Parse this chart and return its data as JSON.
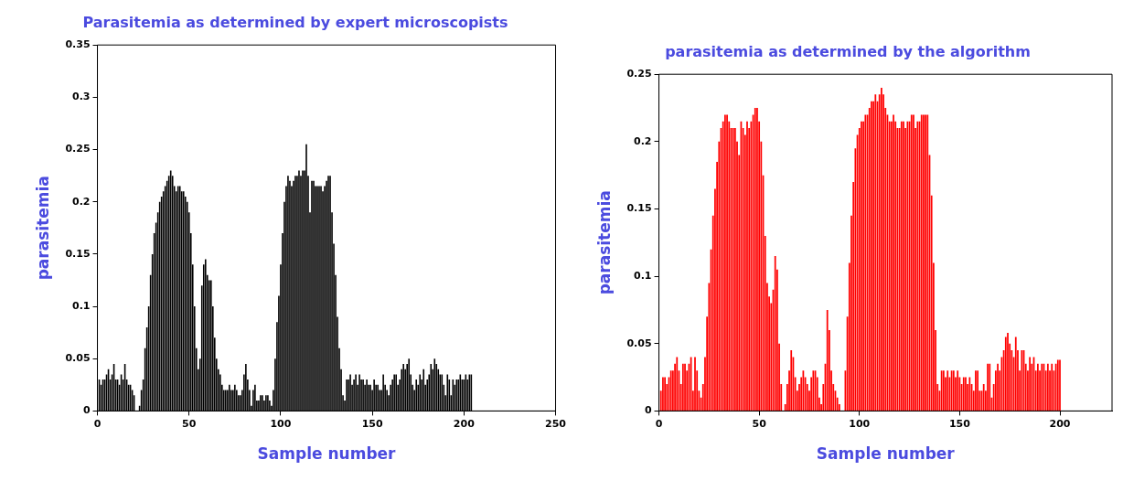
{
  "chart_data": [
    {
      "type": "bar",
      "title": "Parasitemia as determined by expert microscopists",
      "xlabel": "Sample number",
      "ylabel": "parasitemia",
      "color": "#000000",
      "x": [
        1,
        2,
        3,
        4,
        5,
        6,
        7,
        8,
        9,
        10,
        11,
        12,
        13,
        14,
        15,
        16,
        17,
        18,
        19,
        20,
        21,
        22,
        23,
        24,
        25,
        26,
        27,
        28,
        29,
        30,
        31,
        32,
        33,
        34,
        35,
        36,
        37,
        38,
        39,
        40,
        41,
        42,
        43,
        44,
        45,
        46,
        47,
        48,
        49,
        50,
        51,
        52,
        53,
        54,
        55,
        56,
        57,
        58,
        59,
        60,
        61,
        62,
        63,
        64,
        65,
        66,
        67,
        68,
        69,
        70,
        71,
        72,
        73,
        74,
        75,
        76,
        77,
        78,
        79,
        80,
        81,
        82,
        83,
        84,
        85,
        86,
        87,
        88,
        89,
        90,
        91,
        92,
        93,
        94,
        95,
        96,
        97,
        98,
        99,
        100,
        101,
        102,
        103,
        104,
        105,
        106,
        107,
        108,
        109,
        110,
        111,
        112,
        113,
        114,
        115,
        116,
        117,
        118,
        119,
        120,
        121,
        122,
        123,
        124,
        125,
        126,
        127,
        128,
        129,
        130,
        131,
        132,
        133,
        134,
        135,
        136,
        137,
        138,
        139,
        140,
        141,
        142,
        143,
        144,
        145,
        146,
        147,
        148,
        149,
        150,
        151,
        152,
        153,
        154,
        155,
        156,
        157,
        158,
        159,
        160,
        161,
        162,
        163,
        164,
        165,
        166,
        167,
        168,
        169,
        170,
        171,
        172,
        173,
        174,
        175,
        176,
        177,
        178,
        179,
        180,
        181,
        182,
        183,
        184,
        185,
        186,
        187,
        188,
        189,
        190,
        191,
        192,
        193,
        194,
        195,
        196,
        197,
        198,
        199,
        200,
        201,
        202,
        203,
        204
      ],
      "values": [
        0.03,
        0.025,
        0.03,
        0.03,
        0.035,
        0.04,
        0.03,
        0.035,
        0.045,
        0.03,
        0.03,
        0.025,
        0.035,
        0.03,
        0.045,
        0.03,
        0.025,
        0.025,
        0.02,
        0.015,
        0.0,
        0.0,
        0.005,
        0.02,
        0.03,
        0.06,
        0.08,
        0.1,
        0.13,
        0.15,
        0.17,
        0.18,
        0.19,
        0.2,
        0.205,
        0.21,
        0.215,
        0.22,
        0.225,
        0.23,
        0.225,
        0.215,
        0.21,
        0.215,
        0.215,
        0.21,
        0.21,
        0.205,
        0.2,
        0.19,
        0.17,
        0.14,
        0.1,
        0.06,
        0.04,
        0.05,
        0.12,
        0.14,
        0.145,
        0.13,
        0.125,
        0.125,
        0.1,
        0.07,
        0.05,
        0.04,
        0.035,
        0.025,
        0.02,
        0.02,
        0.02,
        0.025,
        0.02,
        0.02,
        0.025,
        0.02,
        0.015,
        0.015,
        0.02,
        0.035,
        0.045,
        0.03,
        0.02,
        0.005,
        0.02,
        0.025,
        0.01,
        0.01,
        0.015,
        0.015,
        0.01,
        0.015,
        0.015,
        0.01,
        0.005,
        0.02,
        0.05,
        0.085,
        0.11,
        0.14,
        0.17,
        0.2,
        0.215,
        0.225,
        0.22,
        0.215,
        0.22,
        0.225,
        0.225,
        0.23,
        0.225,
        0.23,
        0.23,
        0.255,
        0.225,
        0.19,
        0.22,
        0.22,
        0.215,
        0.215,
        0.215,
        0.215,
        0.21,
        0.215,
        0.22,
        0.225,
        0.225,
        0.19,
        0.16,
        0.13,
        0.09,
        0.06,
        0.04,
        0.015,
        0.01,
        0.03,
        0.03,
        0.035,
        0.025,
        0.03,
        0.035,
        0.025,
        0.035,
        0.03,
        0.03,
        0.025,
        0.03,
        0.025,
        0.025,
        0.02,
        0.03,
        0.025,
        0.025,
        0.02,
        0.02,
        0.035,
        0.025,
        0.02,
        0.015,
        0.025,
        0.03,
        0.035,
        0.035,
        0.025,
        0.03,
        0.04,
        0.045,
        0.04,
        0.045,
        0.05,
        0.035,
        0.025,
        0.02,
        0.03,
        0.025,
        0.035,
        0.03,
        0.04,
        0.025,
        0.03,
        0.035,
        0.045,
        0.04,
        0.05,
        0.045,
        0.04,
        0.035,
        0.035,
        0.025,
        0.015,
        0.035,
        0.03,
        0.015,
        0.03,
        0.025,
        0.03,
        0.03,
        0.035,
        0.03,
        0.03,
        0.035,
        0.03,
        0.035,
        0.035
      ],
      "xlim": [
        0,
        250
      ],
      "xticks": [
        0,
        50,
        100,
        150,
        200,
        250
      ],
      "ylim": [
        0,
        0.35
      ],
      "yticks": [
        0,
        0.05,
        0.1,
        0.15,
        0.2,
        0.25,
        0.3,
        0.35
      ],
      "grid": false,
      "legend": false
    },
    {
      "type": "bar",
      "title": "parasitemia as determined by the algorithm",
      "xlabel": "Sample number",
      "ylabel": "parasitemia",
      "color": "#ff0000",
      "x": [
        1,
        2,
        3,
        4,
        5,
        6,
        7,
        8,
        9,
        10,
        11,
        12,
        13,
        14,
        15,
        16,
        17,
        18,
        19,
        20,
        21,
        22,
        23,
        24,
        25,
        26,
        27,
        28,
        29,
        30,
        31,
        32,
        33,
        34,
        35,
        36,
        37,
        38,
        39,
        40,
        41,
        42,
        43,
        44,
        45,
        46,
        47,
        48,
        49,
        50,
        51,
        52,
        53,
        54,
        55,
        56,
        57,
        58,
        59,
        60,
        61,
        62,
        63,
        64,
        65,
        66,
        67,
        68,
        69,
        70,
        71,
        72,
        73,
        74,
        75,
        76,
        77,
        78,
        79,
        80,
        81,
        82,
        83,
        84,
        85,
        86,
        87,
        88,
        89,
        90,
        91,
        92,
        93,
        94,
        95,
        96,
        97,
        98,
        99,
        100,
        101,
        102,
        103,
        104,
        105,
        106,
        107,
        108,
        109,
        110,
        111,
        112,
        113,
        114,
        115,
        116,
        117,
        118,
        119,
        120,
        121,
        122,
        123,
        124,
        125,
        126,
        127,
        128,
        129,
        130,
        131,
        132,
        133,
        134,
        135,
        136,
        137,
        138,
        139,
        140,
        141,
        142,
        143,
        144,
        145,
        146,
        147,
        148,
        149,
        150,
        151,
        152,
        153,
        154,
        155,
        156,
        157,
        158,
        159,
        160,
        161,
        162,
        163,
        164,
        165,
        166,
        167,
        168,
        169,
        170,
        171,
        172,
        173,
        174,
        175,
        176,
        177,
        178,
        179,
        180,
        181,
        182,
        183,
        184,
        185,
        186,
        187,
        188,
        189,
        190,
        191,
        192,
        193,
        194,
        195,
        196,
        197,
        198,
        199,
        200
      ],
      "values": [
        0.015,
        0.025,
        0.025,
        0.02,
        0.025,
        0.03,
        0.03,
        0.035,
        0.04,
        0.03,
        0.02,
        0.035,
        0.035,
        0.03,
        0.035,
        0.04,
        0.015,
        0.04,
        0.03,
        0.015,
        0.01,
        0.02,
        0.04,
        0.07,
        0.095,
        0.12,
        0.145,
        0.165,
        0.185,
        0.2,
        0.21,
        0.215,
        0.22,
        0.22,
        0.215,
        0.21,
        0.21,
        0.21,
        0.2,
        0.19,
        0.215,
        0.21,
        0.205,
        0.215,
        0.21,
        0.215,
        0.22,
        0.225,
        0.225,
        0.215,
        0.2,
        0.175,
        0.13,
        0.095,
        0.085,
        0.08,
        0.09,
        0.115,
        0.105,
        0.05,
        0.02,
        0.0,
        0.005,
        0.02,
        0.03,
        0.045,
        0.04,
        0.025,
        0.015,
        0.02,
        0.025,
        0.03,
        0.025,
        0.02,
        0.015,
        0.025,
        0.03,
        0.03,
        0.025,
        0.01,
        0.005,
        0.02,
        0.035,
        0.075,
        0.06,
        0.03,
        0.02,
        0.015,
        0.01,
        0.005,
        0.0,
        0.0,
        0.03,
        0.07,
        0.11,
        0.145,
        0.17,
        0.195,
        0.205,
        0.21,
        0.215,
        0.215,
        0.22,
        0.22,
        0.225,
        0.23,
        0.23,
        0.235,
        0.23,
        0.235,
        0.24,
        0.235,
        0.225,
        0.22,
        0.215,
        0.215,
        0.22,
        0.215,
        0.21,
        0.21,
        0.215,
        0.215,
        0.21,
        0.215,
        0.215,
        0.22,
        0.22,
        0.21,
        0.215,
        0.215,
        0.22,
        0.22,
        0.22,
        0.22,
        0.19,
        0.16,
        0.11,
        0.06,
        0.02,
        0.015,
        0.03,
        0.03,
        0.025,
        0.03,
        0.025,
        0.03,
        0.03,
        0.025,
        0.03,
        0.025,
        0.02,
        0.025,
        0.025,
        0.02,
        0.025,
        0.02,
        0.015,
        0.03,
        0.03,
        0.015,
        0.015,
        0.02,
        0.015,
        0.035,
        0.035,
        0.01,
        0.02,
        0.03,
        0.035,
        0.03,
        0.04,
        0.045,
        0.055,
        0.058,
        0.05,
        0.045,
        0.04,
        0.055,
        0.045,
        0.03,
        0.045,
        0.045,
        0.035,
        0.03,
        0.04,
        0.035,
        0.04,
        0.03,
        0.035,
        0.03,
        0.035,
        0.035,
        0.03,
        0.035,
        0.03,
        0.035,
        0.03,
        0.035,
        0.038,
        0.038
      ],
      "xlim": [
        0,
        226
      ],
      "xticks": [
        0,
        50,
        100,
        150,
        200
      ],
      "ylim": [
        0,
        0.25
      ],
      "yticks": [
        0,
        0.05,
        0.1,
        0.15,
        0.2,
        0.25
      ],
      "grid": false,
      "legend": false
    }
  ]
}
